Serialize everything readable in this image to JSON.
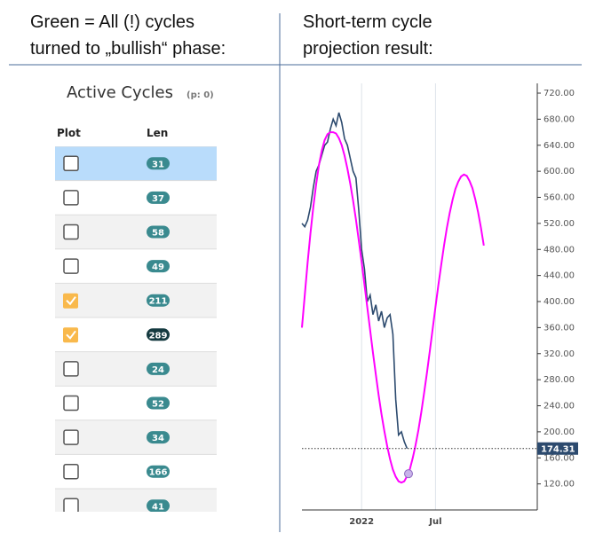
{
  "left_header": {
    "lines": [
      "Green = All (!) cycles",
      "turned to „bullish“ phase:"
    ]
  },
  "right_header": {
    "lines": [
      "Short-term cycle",
      "projection result:"
    ]
  },
  "table": {
    "title": "Active Cycles",
    "pager": "(p: 0)",
    "columns": [
      "Plot",
      "Len"
    ],
    "selected_row": 0,
    "rows": [
      {
        "checked": false,
        "len": 31
      },
      {
        "checked": false,
        "len": 37
      },
      {
        "checked": false,
        "len": 58
      },
      {
        "checked": false,
        "len": 49
      },
      {
        "checked": true,
        "len": 211
      },
      {
        "checked": true,
        "len": 289
      },
      {
        "checked": false,
        "len": 24
      },
      {
        "checked": false,
        "len": 52
      },
      {
        "checked": false,
        "len": 34
      },
      {
        "checked": false,
        "len": 166
      },
      {
        "checked": false,
        "len": 41
      }
    ]
  },
  "chart_data": {
    "type": "line",
    "categories": [
      null,
      null,
      null,
      null,
      null,
      null,
      null,
      null,
      null,
      null,
      null,
      null,
      null,
      null,
      null,
      null,
      null,
      null,
      null,
      null,
      null,
      "2022",
      null,
      null,
      null,
      null,
      null,
      null,
      null,
      null,
      null,
      null,
      null,
      null,
      null,
      null,
      null,
      null,
      null,
      null,
      null,
      null,
      null,
      null,
      null,
      null,
      null,
      "Jul",
      null,
      null,
      null,
      null,
      null,
      null,
      null,
      null,
      null,
      null,
      null,
      null,
      null,
      null,
      null,
      null,
      null
    ],
    "series": [
      {
        "color": "#2c4a6e",
        "values": [
          520,
          515,
          525,
          545,
          575,
          600,
          610,
          625,
          640,
          645,
          665,
          680,
          670,
          690,
          675,
          650,
          640,
          620,
          600,
          590,
          540,
          480,
          450,
          400,
          410,
          380,
          395,
          370,
          385,
          360,
          375,
          380,
          350,
          250,
          195,
          200,
          185,
          174.31,
          null,
          null,
          null,
          null,
          null,
          null,
          null,
          null,
          null,
          null,
          null,
          null,
          null,
          null,
          null,
          null,
          null,
          null,
          null,
          null,
          null,
          null,
          null,
          null,
          null,
          null,
          null
        ]
      },
      {
        "color": "#ff00ff",
        "values": [
          360,
          410,
          460,
          505,
          545,
          580,
          610,
          632,
          648,
          657,
          660,
          660,
          658,
          651,
          640,
          624,
          604,
          581,
          555,
          526,
          494,
          461,
          426,
          391,
          356,
          321,
          288,
          256,
          227,
          201,
          178,
          158,
          142,
          131,
          124,
          122,
          124,
          132,
          143,
          160,
          180,
          203,
          230,
          260,
          291,
          324,
          358,
          392,
          425,
          456,
          486,
          513,
          536,
          556,
          573,
          584,
          592,
          595,
          593,
          585,
          574,
          557,
          537,
          513,
          486
        ]
      }
    ],
    "ylim": [
      80,
      735
    ],
    "yticks": [
      {
        "value": 120,
        "label": "120.00"
      },
      {
        "value": 160,
        "label": "160.00"
      },
      {
        "value": 200,
        "label": "200.00"
      },
      {
        "value": 240,
        "label": "240.00"
      },
      {
        "value": 280,
        "label": "280.00"
      },
      {
        "value": 320,
        "label": "320.00"
      },
      {
        "value": 360,
        "label": "360.00"
      },
      {
        "value": 400,
        "label": "400.00"
      },
      {
        "value": 440,
        "label": "440.00"
      },
      {
        "value": 480,
        "label": "480.00"
      },
      {
        "value": 520,
        "label": "520.00"
      },
      {
        "value": 560,
        "label": "560.00"
      },
      {
        "value": 600,
        "label": "600.00"
      },
      {
        "value": 640,
        "label": "640.00"
      },
      {
        "value": 680,
        "label": "680.00"
      },
      {
        "value": 720,
        "label": "720.00"
      }
    ],
    "grid": true
  }
}
